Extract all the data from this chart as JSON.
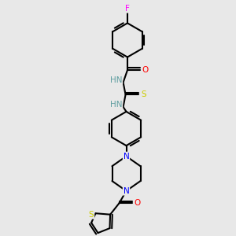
{
  "background_color": "#e8e8e8",
  "bond_color": "#000000",
  "atom_colors": {
    "F": "#ff00ff",
    "O": "#ff0000",
    "N": "#0000ff",
    "S": "#cccc00",
    "C": "#000000",
    "H": "#5f9ea0"
  },
  "figsize": [
    3.0,
    3.0
  ],
  "dpi": 100
}
